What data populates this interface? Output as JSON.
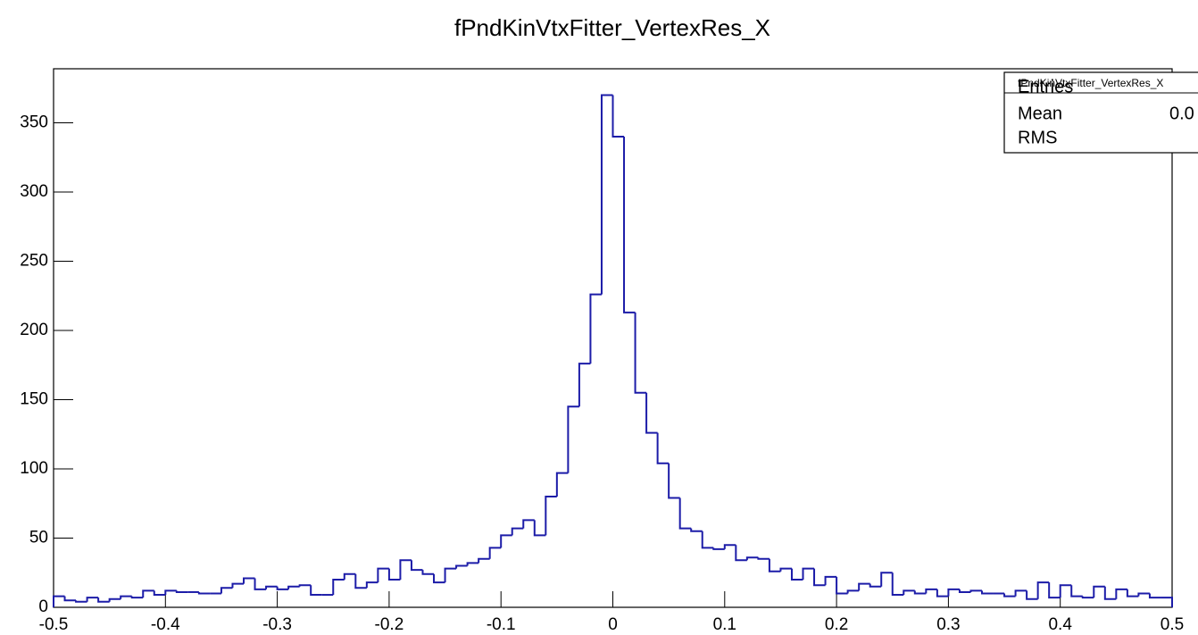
{
  "chart_data": {
    "type": "histogram",
    "title": "fPndKinVtxFitter_VertexRes_X",
    "color": "#1c1ca8",
    "bins": [
      -0.5,
      -0.49,
      -0.48,
      -0.47,
      -0.46,
      -0.45,
      -0.44,
      -0.43,
      -0.42,
      -0.41,
      -0.4,
      -0.39,
      -0.38,
      -0.37,
      -0.36,
      -0.35,
      -0.34,
      -0.33,
      -0.32,
      -0.31,
      -0.3,
      -0.29,
      -0.28,
      -0.27,
      -0.26,
      -0.25,
      -0.24,
      -0.23,
      -0.22,
      -0.21,
      -0.2,
      -0.19,
      -0.18,
      -0.17,
      -0.16,
      -0.15,
      -0.14,
      -0.13,
      -0.12,
      -0.11,
      -0.1,
      -0.09,
      -0.08,
      -0.07,
      -0.06,
      -0.05,
      -0.04,
      -0.03,
      -0.02,
      -0.01,
      0,
      0.01,
      0.02,
      0.03,
      0.04,
      0.05,
      0.06,
      0.07,
      0.08,
      0.09,
      0.1,
      0.11,
      0.12,
      0.13,
      0.14,
      0.15,
      0.16,
      0.17,
      0.18,
      0.19,
      0.2,
      0.21,
      0.22,
      0.23,
      0.24,
      0.25,
      0.26,
      0.27,
      0.28,
      0.29,
      0.3,
      0.31,
      0.32,
      0.33,
      0.34,
      0.35,
      0.36,
      0.37,
      0.38,
      0.39,
      0.4,
      0.41,
      0.42,
      0.43,
      0.44,
      0.45,
      0.46,
      0.47,
      0.48,
      0.49,
      0.5
    ],
    "counts": [
      8,
      5,
      4,
      7,
      4,
      6,
      8,
      7,
      12,
      9,
      12,
      11,
      11,
      10,
      10,
      14,
      17,
      21,
      13,
      15,
      13,
      15,
      16,
      9,
      9,
      20,
      24,
      14,
      18,
      28,
      20,
      34,
      27,
      24,
      18,
      28,
      30,
      32,
      35,
      43,
      52,
      57,
      63,
      52,
      80,
      97,
      145,
      176,
      226,
      370,
      340,
      213,
      155,
      126,
      104,
      79,
      57,
      55,
      43,
      42,
      45,
      34,
      36,
      35,
      26,
      28,
      20,
      28,
      16,
      22,
      10,
      12,
      17,
      15,
      25,
      9,
      12,
      10,
      13,
      8,
      13,
      11,
      12,
      10,
      10,
      8,
      12,
      6,
      18,
      7,
      16,
      8,
      7,
      15,
      6,
      13,
      8,
      10,
      7,
      7
    ],
    "xlim": [
      -0.5,
      0.5
    ],
    "xticks": [
      -0.5,
      -0.4,
      -0.3,
      -0.2,
      -0.1,
      0,
      0.1,
      0.2,
      0.3,
      0.4,
      0.5
    ],
    "ylim": [
      0,
      389
    ],
    "yticks": [
      0,
      50,
      100,
      150,
      200,
      250,
      300,
      350
    ],
    "stats": {
      "title": "fPndKinVtxFitter_VertexRes_X",
      "rows": [
        "Entries",
        "Mean",
        "RMS"
      ],
      "mean_label": "0.0"
    }
  }
}
